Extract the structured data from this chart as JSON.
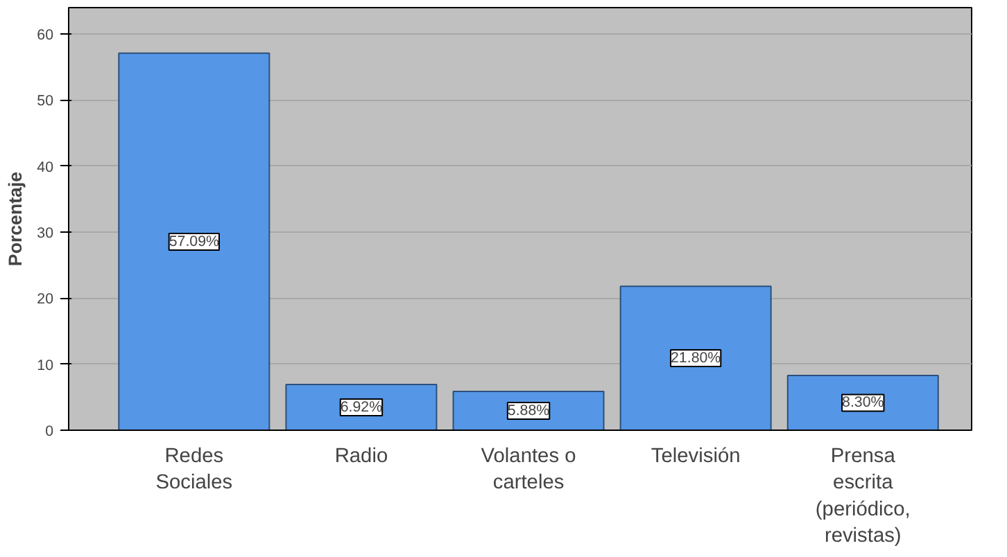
{
  "chart_data": {
    "type": "bar",
    "ylabel": "Porcentaje",
    "categories": [
      "Redes Sociales",
      "Radio",
      "Volantes o carteles",
      "Televisión",
      "Prensa escrita (periódico, revistas)"
    ],
    "values": [
      57.09,
      6.92,
      5.88,
      21.8,
      8.3
    ],
    "value_labels": [
      "57.09%",
      "6.92%",
      "5.88%",
      "21.80%",
      "8.30%"
    ],
    "color": "#5596e6",
    "ylim": [
      0,
      64
    ],
    "yticks": [
      0,
      10,
      20,
      30,
      40,
      50,
      60
    ],
    "grid": "y"
  }
}
